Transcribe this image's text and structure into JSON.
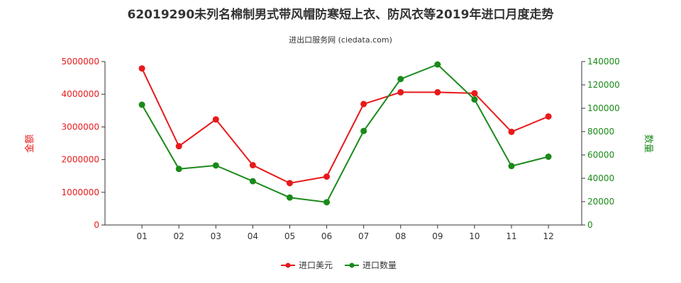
{
  "chart_data": {
    "type": "line",
    "title": "62019290未列名棉制男式带风帽防寒短上衣、防风衣等2019年进口月度走势",
    "subtitle": "进出口服务网 (ciedata.com)",
    "categories": [
      "01",
      "02",
      "03",
      "04",
      "05",
      "06",
      "07",
      "08",
      "09",
      "10",
      "11",
      "12"
    ],
    "y_left": {
      "label": "金额",
      "ylim": [
        0,
        5000000
      ],
      "ticks": [
        0,
        1000000,
        2000000,
        3000000,
        4000000,
        5000000
      ],
      "tick_labels": [
        "0",
        "1000000",
        "2000000",
        "3000000",
        "4000000",
        "5000000"
      ],
      "color": "#e8191b"
    },
    "y_right": {
      "label": "数量",
      "ylim": [
        0,
        140000
      ],
      "ticks": [
        0,
        20000,
        40000,
        60000,
        80000,
        100000,
        120000,
        140000
      ],
      "tick_labels": [
        "0",
        "20000",
        "40000",
        "60000",
        "80000",
        "100000",
        "120000",
        "140000"
      ],
      "color": "#1a8a1a"
    },
    "series": [
      {
        "name": "进口美元",
        "axis": "left",
        "color": "#e8191b",
        "values": [
          4790000,
          2410000,
          3230000,
          1830000,
          1280000,
          1480000,
          3700000,
          4060000,
          4060000,
          4030000,
          2850000,
          3320000
        ]
      },
      {
        "name": "进口数量",
        "axis": "right",
        "color": "#1a8a1a",
        "values": [
          103000,
          48000,
          51000,
          37500,
          23500,
          19500,
          80500,
          125000,
          137500,
          107500,
          50500,
          58500
        ]
      }
    ],
    "legend_position": "bottom-center",
    "grid": false
  }
}
